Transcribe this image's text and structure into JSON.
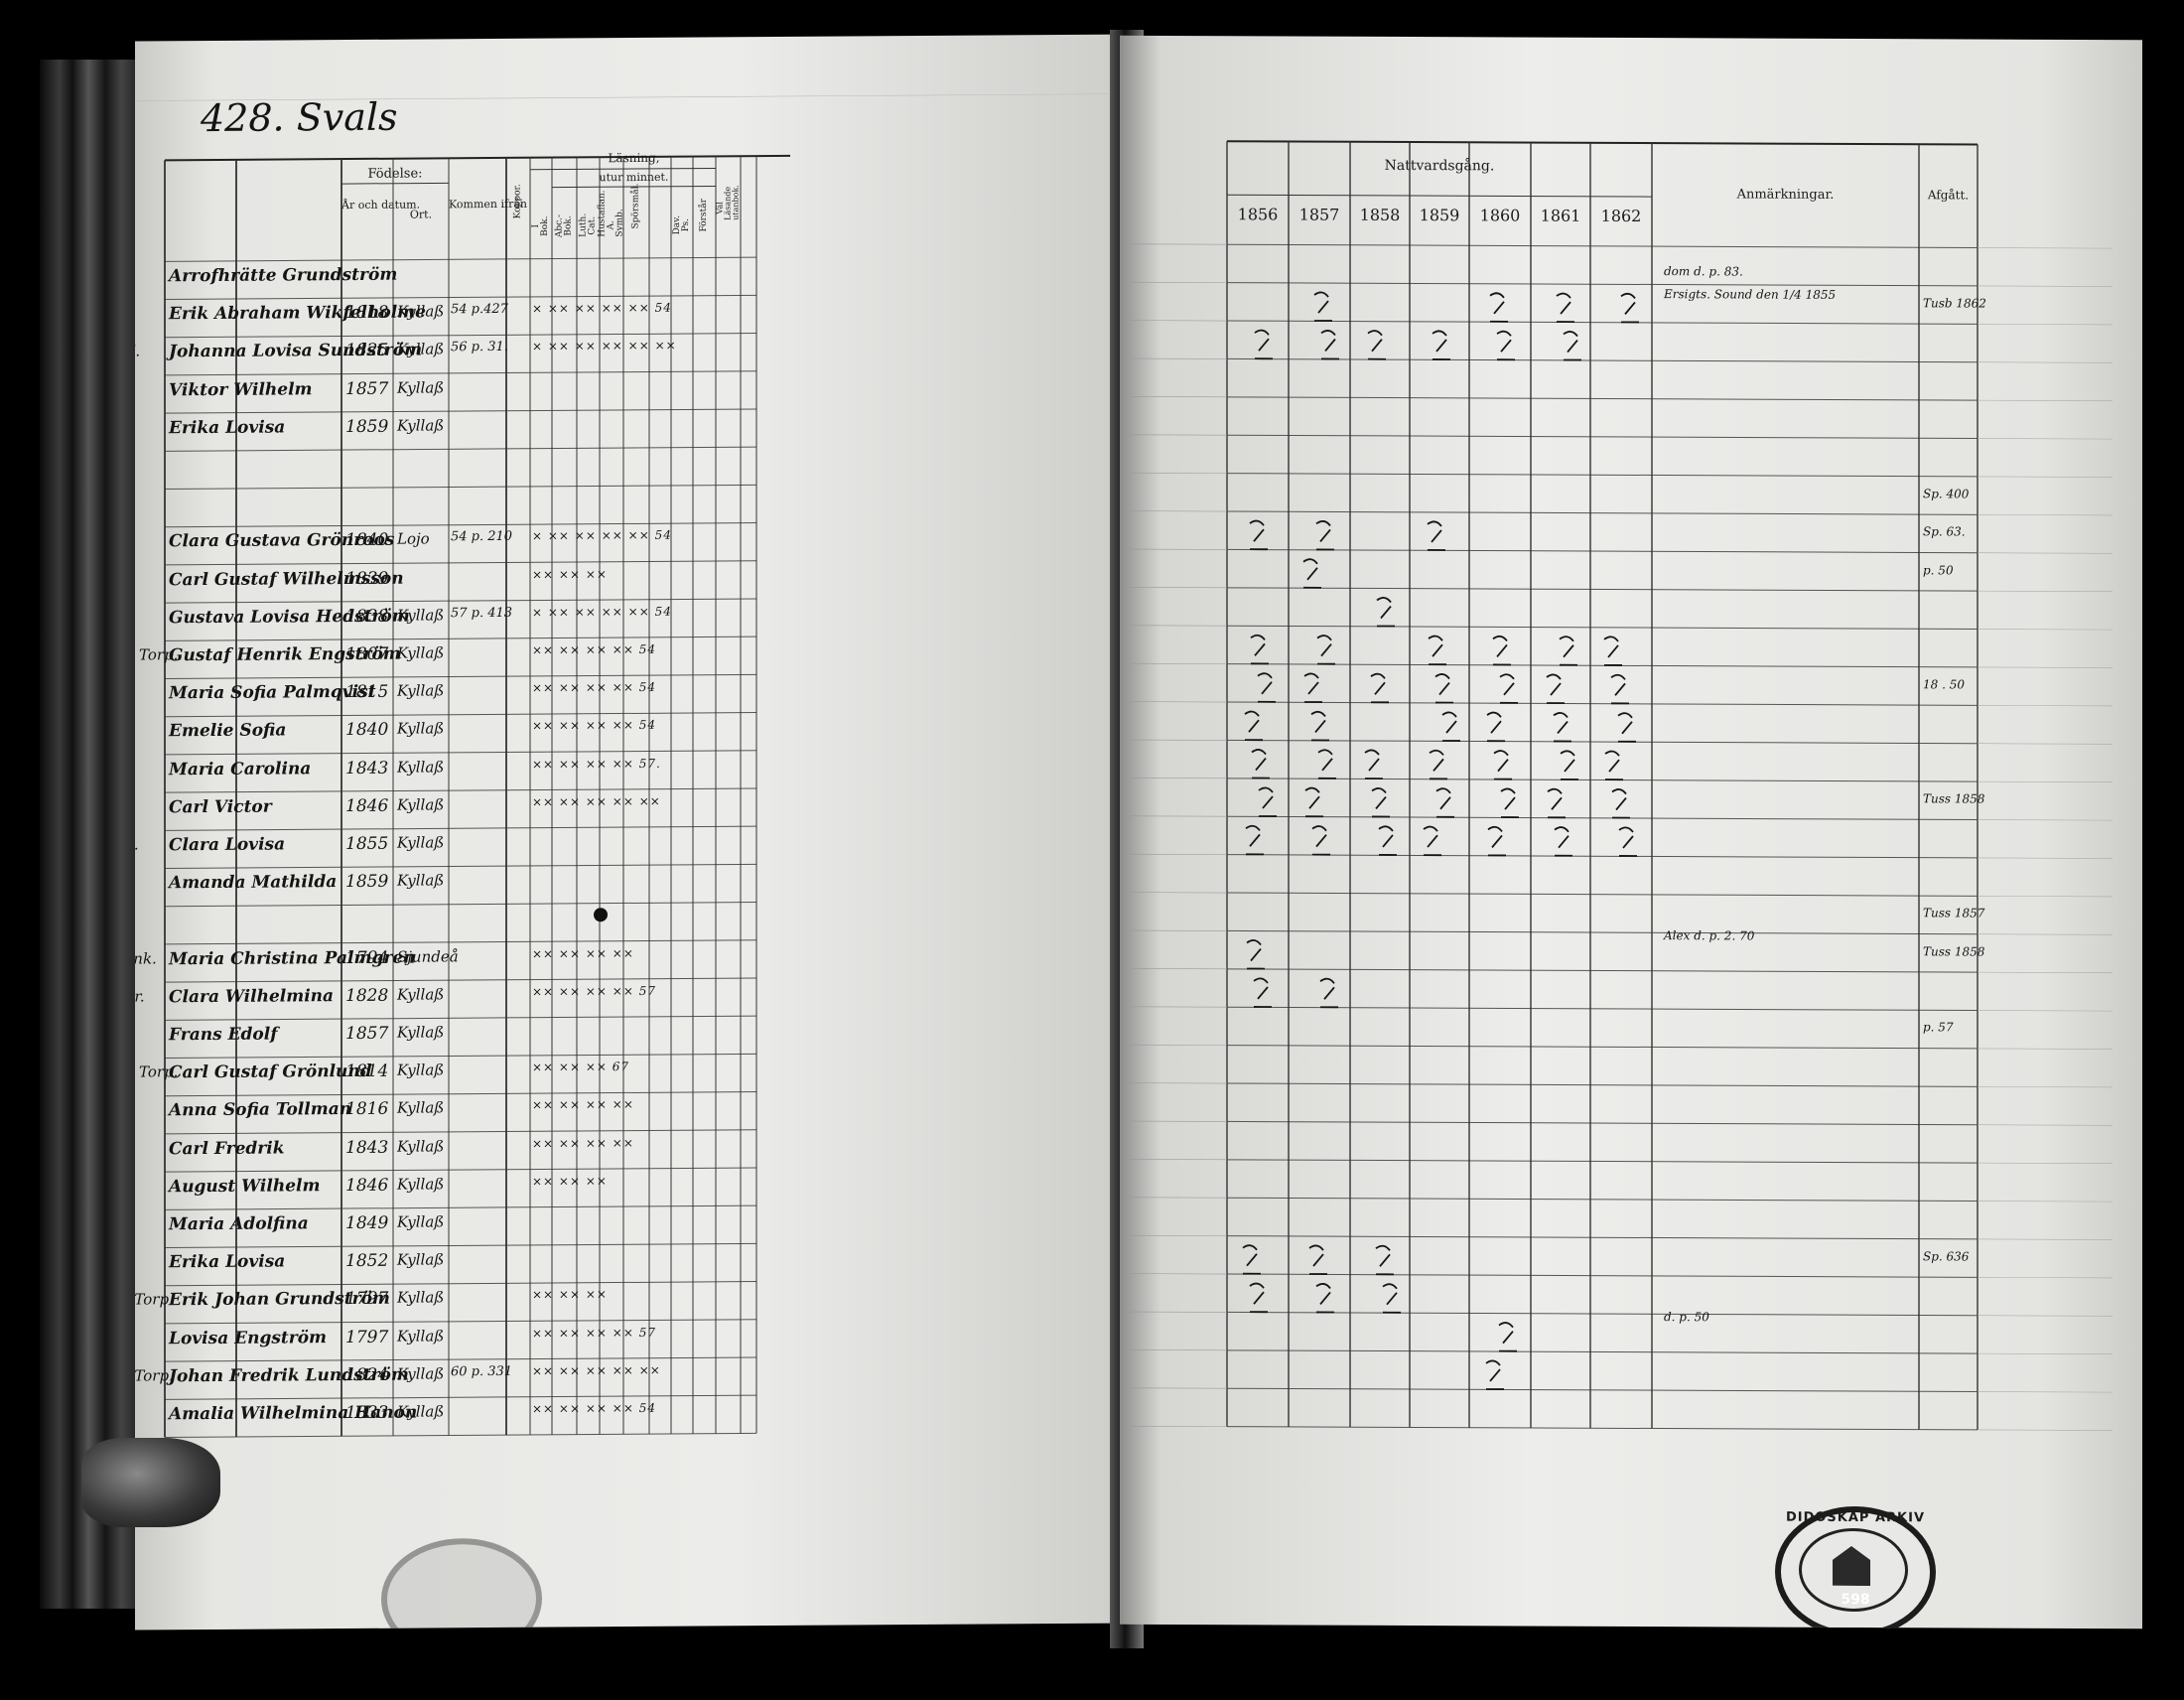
{
  "left_page": {
    "page_number": "428. Svals",
    "column_headers": {
      "fodelse": "Födelse:",
      "ar_och_datum": "År och datum.",
      "ort": "Ort.",
      "kommen_ifran": "Kommen ifrån",
      "kopper": "Koppor.",
      "lasning": "Läsning,",
      "utur_minnet": "utur minnet.",
      "i_bok": "I Bok.",
      "abc_bok": "Abc.-Bok.",
      "luth_cat": "Luth. Cat.",
      "hustafian_symb": "Hustaflan. A. Symb.",
      "sporsmal": "Spörsmål.",
      "dav_ps": "Dav. Ps.",
      "forstar": "Förstår",
      "val_lasande": "Väl Läsande utanbok."
    },
    "rows": [
      {
        "prefix": "",
        "name": "Arrofhrätte Grundström",
        "year": "",
        "place": "",
        "from": "",
        "cells": ""
      },
      {
        "prefix": "",
        "name": "Erik Abraham Wikfelholme",
        "year": "1818",
        "place": "Kyllaß",
        "from": "54 p.427",
        "cells": "×  ×× ×× ×× ××   54"
      },
      {
        "prefix": "+ H.",
        "name": "Johanna Lovisa Sundström",
        "year": "1825",
        "place": "Kyllaß",
        "from": "56 p. 31.",
        "cells": "×  ×× ×× ×× ××  ××"
      },
      {
        "prefix": "S.",
        "name": "Viktor Wilhelm",
        "year": "1857",
        "place": "Kyllaß",
        "from": "",
        "cells": ""
      },
      {
        "prefix": "D.",
        "name": "Erika Lovisa",
        "year": "1859",
        "place": "Kyllaß",
        "from": "",
        "cells": ""
      },
      {
        "prefix": "",
        "name": "",
        "year": "",
        "place": "",
        "from": "",
        "cells": ""
      },
      {
        "prefix": "",
        "name": "",
        "year": "",
        "place": "",
        "from": "",
        "cells": ""
      },
      {
        "prefix": "Pig.",
        "name": "Clara Gustava Grönroos",
        "year": "1840",
        "place": "Lojo",
        "from": "54 p. 210",
        "cells": "×  ×× ×× ×× ××  54"
      },
      {
        "prefix": "Dr.",
        "name": "Carl Gustaf Wilhelmsson",
        "year": "1839",
        "place": "",
        "from": "",
        "cells": "×× ×× ××"
      },
      {
        "prefix": "Pig.",
        "name": "Gustava Lovisa Hedström",
        "year": "1838",
        "place": "Kyllaß",
        "from": "57 p. 413",
        "cells": "×  ×× ×× ×× ××  54"
      },
      {
        "prefix": "Sm. Torp.",
        "name": "Gustaf Henrik Engström",
        "year": "1807",
        "place": "Kyllaß",
        "from": "",
        "cells": "×× ×× ×× ××  54"
      },
      {
        "prefix": "H.",
        "name": "Maria Sofia Palmqvist",
        "year": "1815",
        "place": "Kyllaß",
        "from": "",
        "cells": "×× ×× ×× ××  54"
      },
      {
        "prefix": "D.",
        "name": "Emelie Sofia",
        "year": "1840",
        "place": "Kyllaß",
        "from": "",
        "cells": "×× ×× ×× ××  54"
      },
      {
        "prefix": "D.",
        "name": "Maria Carolina",
        "year": "1843",
        "place": "Kyllaß",
        "from": "",
        "cells": "×× ×× ×× ××  57."
      },
      {
        "prefix": "S.",
        "name": "Carl Victor",
        "year": "1846",
        "place": "Kyllaß",
        "from": "",
        "cells": "×× ×× ×× ××  ××"
      },
      {
        "prefix": "+ D.",
        "name": "Clara Lovisa",
        "year": "1855",
        "place": "Kyllaß",
        "from": "",
        "cells": ""
      },
      {
        "prefix": "D.",
        "name": "Amanda Mathilda",
        "year": "1859",
        "place": "Kyllaß",
        "from": "",
        "cells": ""
      },
      {
        "prefix": "",
        "name": "",
        "year": "",
        "place": "",
        "from": "",
        "cells": ""
      },
      {
        "prefix": "+ Enk.",
        "name": "Maria Christina Palmgren",
        "year": "1794",
        "place": "Sjundeå",
        "from": "",
        "cells": "×× ×× ×× ××"
      },
      {
        "prefix": "+ Dr.",
        "name": "Clara Wilhelmina",
        "year": "1828",
        "place": "Kyllaß",
        "from": "",
        "cells": "×× ×× ×× ××  57"
      },
      {
        "prefix": "S.",
        "name": "Frans Edolf",
        "year": "1857",
        "place": "Kyllaß",
        "from": "",
        "cells": ""
      },
      {
        "prefix": "Sm. Torp.",
        "name": "Carl Gustaf Grönlund",
        "year": "1814",
        "place": "Kyllaß",
        "from": "",
        "cells": "×× ×× ××  67"
      },
      {
        "prefix": "H.",
        "name": "Anna Sofia Tollman",
        "year": "1816",
        "place": "Kyllaß",
        "from": "",
        "cells": "×× ×× ×× ××"
      },
      {
        "prefix": "S.",
        "name": "Carl Fredrik",
        "year": "1843",
        "place": "Kyllaß",
        "from": "",
        "cells": "×× ×× ×× ××"
      },
      {
        "prefix": "S.",
        "name": "August Wilhelm",
        "year": "1846",
        "place": "Kyllaß",
        "from": "",
        "cells": "×× ×× ××"
      },
      {
        "prefix": "D.",
        "name": "Maria Adolfina",
        "year": "1849",
        "place": "Kyllaß",
        "from": "",
        "cells": ""
      },
      {
        "prefix": "D.",
        "name": "Erika Lovisa",
        "year": "1852",
        "place": "Kyllaß",
        "from": "",
        "cells": ""
      },
      {
        "prefix": "Sp. Torp.",
        "name": "Erik Johan Grundström",
        "year": "1797",
        "place": "Kyllaß",
        "from": "",
        "cells": "×× ×× ××"
      },
      {
        "prefix": "H.",
        "name": "Lovisa Engström",
        "year": "1797",
        "place": "Kyllaß",
        "from": "",
        "cells": "×× ×× ×× ××  57"
      },
      {
        "prefix": "Sp. Torp.",
        "name": "Johan Fredrik Lundström",
        "year": "1824",
        "place": "Kyllaß",
        "from": "60 p. 331",
        "cells": "×× ×× ×× ××  ××"
      },
      {
        "prefix": "H.",
        "name": "Amalia Wilhelmina Hanon",
        "year": "1833",
        "place": "Kyllaß",
        "from": "",
        "cells": "×× ×× ×× ××  54"
      }
    ]
  },
  "right_page": {
    "nattvardsgang_header": "Nattvardsgång.",
    "years": [
      "1856",
      "1857",
      "1858",
      "1859",
      "1860",
      "1861",
      "1862"
    ],
    "anmarkningar_header": "Anmärkningar.",
    "afgatt_header": "Afgått.",
    "notes": [
      {
        "row": 1,
        "text": "dom d. p. 83."
      },
      {
        "row": 1.6,
        "text": "Ersigts. Sound den 1/4 1855"
      },
      {
        "row": 18.4,
        "text": "Alex d. p. 2. 70"
      },
      {
        "row": 28.4,
        "text": "d. p. 50"
      }
    ],
    "afgatt_entries": [
      {
        "row": 2,
        "text": "Tusb 1862"
      },
      {
        "row": 7,
        "text": "Sp. 400"
      },
      {
        "row": 8,
        "text": "Sp. 63."
      },
      {
        "row": 9,
        "text": "p. 50"
      },
      {
        "row": 12,
        "text": "18 . 50"
      },
      {
        "row": 15,
        "text": "Tuss 1858"
      },
      {
        "row": 18,
        "text": "Tuss 1857"
      },
      {
        "row": 19,
        "text": "Tuss 1858"
      },
      {
        "row": 21,
        "text": "p. 57"
      },
      {
        "row": 27,
        "text": "Sp. 636"
      }
    ]
  },
  "stamp": {
    "number": "598",
    "arc_text": "DIDOSKAP ARKIV"
  }
}
